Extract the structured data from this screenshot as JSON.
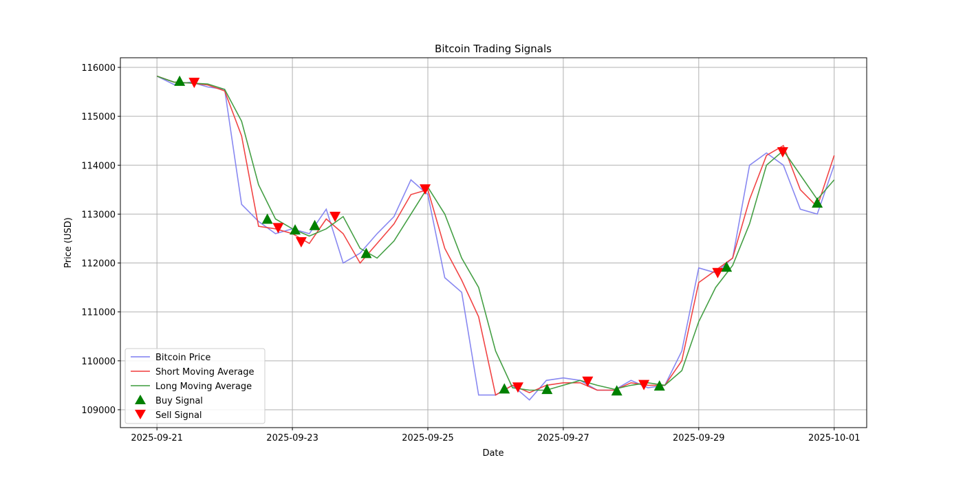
{
  "chart_data": {
    "type": "line",
    "title": "Bitcoin Trading Signals",
    "xlabel": "Date",
    "ylabel": "Price (USD)",
    "x_unit": "days since 2025-09-21",
    "xlim": [
      -0.54,
      10.48
    ],
    "ylim": [
      108634,
      116197
    ],
    "grid": true,
    "legend_position": "bottom-left",
    "x_ticks": [
      {
        "value": 0,
        "label": "2025-09-21"
      },
      {
        "value": 2,
        "label": "2025-09-23"
      },
      {
        "value": 4,
        "label": "2025-09-25"
      },
      {
        "value": 6,
        "label": "2025-09-27"
      },
      {
        "value": 8,
        "label": "2025-09-29"
      },
      {
        "value": 10,
        "label": "2025-10-01"
      }
    ],
    "y_ticks": [
      109000,
      110000,
      111000,
      112000,
      113000,
      114000,
      115000,
      116000
    ],
    "x": [
      0,
      0.25,
      0.5,
      0.75,
      1,
      1.25,
      1.5,
      1.75,
      2,
      2.25,
      2.5,
      2.75,
      3,
      3.25,
      3.5,
      3.75,
      4,
      4.25,
      4.5,
      4.75,
      5,
      5.25,
      5.5,
      5.75,
      6,
      6.25,
      6.5,
      6.75,
      7,
      7.25,
      7.5,
      7.75,
      8,
      8.25,
      8.5,
      8.75,
      9,
      9.25,
      9.5,
      9.75,
      10
    ],
    "series": [
      {
        "name": "Bitcoin Price",
        "color": "#7b7bf0",
        "values": [
          115820,
          115650,
          115700,
          115600,
          115550,
          113200,
          112850,
          112600,
          112700,
          112600,
          113100,
          112000,
          112200,
          112600,
          112950,
          113700,
          113400,
          111700,
          111400,
          109300,
          109300,
          109500,
          109200,
          109600,
          109650,
          109600,
          109400,
          109400,
          109600,
          109450,
          109500,
          110200,
          111900,
          111800,
          112100,
          114000,
          114250,
          114000,
          113100,
          113000,
          114000
        ]
      },
      {
        "name": "Short Moving Average",
        "color": "#f03a3a",
        "values": [
          115820,
          115700,
          115680,
          115640,
          115520,
          114600,
          112750,
          112700,
          112600,
          112400,
          112900,
          112600,
          112000,
          112400,
          112800,
          113400,
          113500,
          112300,
          111650,
          110900,
          109300,
          109500,
          109350,
          109500,
          109550,
          109550,
          109400,
          109400,
          109550,
          109500,
          109500,
          110000,
          111600,
          111850,
          112100,
          113300,
          114200,
          114400,
          113500,
          113150,
          114200
        ]
      },
      {
        "name": "Long Moving Average",
        "color": "#3a9a3a",
        "values": [
          115820,
          115700,
          115680,
          115660,
          115550,
          114900,
          113600,
          112900,
          112700,
          112550,
          112700,
          112950,
          112300,
          112100,
          112450,
          113000,
          113550,
          113000,
          112100,
          111500,
          110200,
          109450,
          109400,
          109400,
          109500,
          109600,
          109500,
          109420,
          109500,
          109550,
          109500,
          109800,
          110800,
          111500,
          111950,
          112800,
          114000,
          114300,
          113800,
          113300,
          113700
        ]
      }
    ],
    "signals": {
      "buy": {
        "name": "Buy Signal",
        "color": "#008000",
        "points": [
          [
            0.335,
            115720
          ],
          [
            1.63,
            112900
          ],
          [
            2.04,
            112680
          ],
          [
            2.33,
            112770
          ],
          [
            3.09,
            112200
          ],
          [
            5.13,
            109430
          ],
          [
            5.76,
            109420
          ],
          [
            6.79,
            109390
          ],
          [
            7.42,
            109490
          ],
          [
            8.41,
            111920
          ],
          [
            9.75,
            113230
          ]
        ]
      },
      "sell": {
        "name": "Sell Signal",
        "color": "#ff0000",
        "points": [
          [
            0.55,
            115690
          ],
          [
            1.79,
            112720
          ],
          [
            2.13,
            112430
          ],
          [
            2.63,
            112950
          ],
          [
            3.96,
            113510
          ],
          [
            5.33,
            109460
          ],
          [
            6.36,
            109580
          ],
          [
            7.19,
            109510
          ],
          [
            8.28,
            111800
          ],
          [
            9.24,
            114270
          ]
        ]
      }
    }
  }
}
